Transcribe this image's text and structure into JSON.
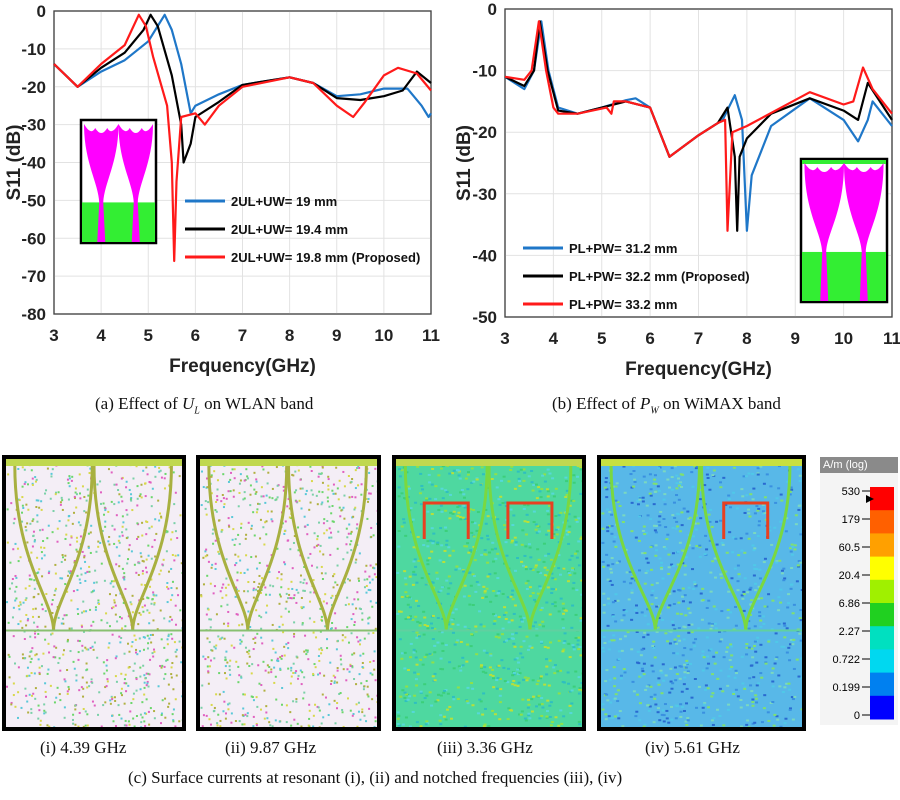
{
  "chart_data": [
    {
      "type": "line",
      "xlabel": "Frequency(GHz)",
      "ylabel": "S11 (dB)",
      "xlim": [
        3,
        11
      ],
      "ylim": [
        -80,
        0
      ],
      "xticks": [
        "3",
        "4",
        "5",
        "6",
        "7",
        "8",
        "9",
        "10",
        "11"
      ],
      "yticks": [
        "0",
        "-10",
        "-20",
        "-30",
        "-40",
        "-50",
        "-60",
        "-70",
        "-80"
      ],
      "grid": true,
      "legend_position": "bottom-right",
      "caption": "Effect of U_L on WLAN band",
      "caption_label": "(a)",
      "caption_text": "Effect of",
      "caption_var": "U",
      "caption_sub": "L",
      "caption_tail": "on WLAN band",
      "series": [
        {
          "name": "2UL+UW= 19 mm",
          "color": "#1f77c8",
          "x": [
            3,
            3.5,
            4,
            4.5,
            5,
            5.2,
            5.35,
            5.5,
            5.7,
            5.9,
            6.0,
            6.5,
            7,
            8,
            8.5,
            9,
            9.5,
            10,
            10.5,
            10.8,
            10.95,
            11
          ],
          "y": [
            -14,
            -20,
            -16,
            -13,
            -8,
            -4,
            -1,
            -5,
            -14,
            -27,
            -25,
            -22,
            -19.5,
            -17.5,
            -19,
            -22.5,
            -22,
            -20.5,
            -20.5,
            -25,
            -28,
            -27
          ]
        },
        {
          "name": "2UL+UW= 19.4 mm",
          "color": "#000000",
          "x": [
            3,
            3.5,
            4,
            4.5,
            4.9,
            5.05,
            5.2,
            5.5,
            5.7,
            5.75,
            5.9,
            6.0,
            6.5,
            7,
            8,
            8.5,
            9,
            9.5,
            10,
            10.4,
            10.7,
            11
          ],
          "y": [
            -14,
            -20,
            -15,
            -11,
            -5,
            -1,
            -4,
            -17,
            -30,
            -40,
            -35,
            -28,
            -24,
            -19.5,
            -17.5,
            -19,
            -23,
            -23.5,
            -22.5,
            -21,
            -16,
            -19
          ]
        },
        {
          "name": "2UL+UW= 19.8 mm (Proposed)",
          "color": "#ff1a1a",
          "x": [
            3,
            3.5,
            4,
            4.5,
            4.8,
            4.95,
            5.1,
            5.4,
            5.5,
            5.55,
            5.6,
            5.7,
            6.0,
            6.2,
            6.5,
            7,
            8,
            8.5,
            9,
            9.35,
            9.6,
            10,
            10.3,
            10.7,
            11
          ],
          "y": [
            -14,
            -20,
            -14,
            -9,
            -1,
            -4,
            -12,
            -25,
            -40,
            -66,
            -45,
            -28,
            -27,
            -30,
            -25,
            -20,
            -17.5,
            -19,
            -25,
            -28,
            -24,
            -17,
            -15,
            -16.5,
            -21
          ]
        }
      ]
    },
    {
      "type": "line",
      "xlabel": "Frequency(GHz)",
      "ylabel": "S11 (dB)",
      "xlim": [
        3,
        11
      ],
      "ylim": [
        -50,
        0
      ],
      "xticks": [
        "3",
        "4",
        "5",
        "6",
        "7",
        "8",
        "9",
        "10",
        "11"
      ],
      "yticks": [
        "0",
        "-10",
        "-20",
        "-30",
        "-40",
        "-50"
      ],
      "grid": true,
      "legend_position": "bottom-left",
      "caption_label": "(b)",
      "caption_text": "Effect of",
      "caption_var": "P",
      "caption_sub": "W",
      "caption_tail": "on WiMAX band",
      "series": [
        {
          "name": "PL+PW= 31.2 mm",
          "color": "#1f77c8",
          "x": [
            3,
            3.4,
            3.6,
            3.75,
            3.9,
            4.1,
            4.5,
            5,
            5.5,
            5.7,
            6,
            6.4,
            7,
            7.5,
            7.75,
            7.9,
            8.0,
            8.1,
            8.5,
            9.3,
            10,
            10.3,
            10.5,
            10.6,
            11
          ],
          "y": [
            -11,
            -13,
            -10,
            -2,
            -10,
            -16,
            -17,
            -16,
            -14.8,
            -14.5,
            -16,
            -24,
            -20.5,
            -18,
            -14,
            -18,
            -36,
            -27,
            -19,
            -14.5,
            -18,
            -21.5,
            -18,
            -15,
            -19
          ]
        },
        {
          "name": "PL+PW= 32.2 mm (Proposed)",
          "color": "#000000",
          "x": [
            3,
            3.4,
            3.6,
            3.72,
            3.88,
            4.1,
            4.5,
            5,
            5.5,
            6,
            6.4,
            7,
            7.4,
            7.6,
            7.75,
            7.8,
            7.85,
            8.0,
            8.5,
            9.3,
            10,
            10.3,
            10.5,
            11
          ],
          "y": [
            -11,
            -12.5,
            -10,
            -2,
            -10,
            -16.5,
            -17,
            -16,
            -15,
            -16,
            -24,
            -20.5,
            -18.5,
            -16,
            -24,
            -36,
            -24,
            -21,
            -17,
            -14.5,
            -16.5,
            -18,
            -12,
            -18
          ]
        },
        {
          "name": "PL+PW= 33.2 mm",
          "color": "#ff1a1a",
          "x": [
            3,
            3.4,
            3.55,
            3.7,
            3.85,
            4.0,
            4.1,
            4.5,
            5.1,
            5.2,
            5.25,
            5.5,
            6,
            6.4,
            7,
            7.4,
            7.55,
            7.6,
            7.7,
            8,
            9.3,
            10,
            10.2,
            10.4,
            10.6,
            11
          ],
          "y": [
            -11,
            -11.5,
            -10,
            -2,
            -10,
            -16,
            -17,
            -17,
            -16,
            -17,
            -15,
            -15,
            -16,
            -24,
            -20.5,
            -18.5,
            -18,
            -36,
            -20,
            -19,
            -13.5,
            -15.5,
            -15,
            -9.5,
            -13,
            -17
          ]
        }
      ]
    }
  ],
  "surface_currents": {
    "panels": [
      {
        "label": "(i)",
        "value": "4.39 GHz"
      },
      {
        "label": "(ii)",
        "value": "9.87 GHz"
      },
      {
        "label": "(iii)",
        "value": "3.36 GHz"
      },
      {
        "label": "(iv)",
        "value": "5.61 GHz"
      }
    ],
    "colorbar": {
      "title": "A/m (log)",
      "ticks": [
        "530",
        "179",
        "60.5",
        "20.4",
        "6.86",
        "2.27",
        "0.722",
        "0.199",
        "0"
      ]
    },
    "caption": "(c) Surface currents at resonant (i), (ii) and notched frequencies (iii), (iv)"
  },
  "colors": {
    "magenta": "#ff00ff",
    "ground_green": "#33ee33"
  }
}
